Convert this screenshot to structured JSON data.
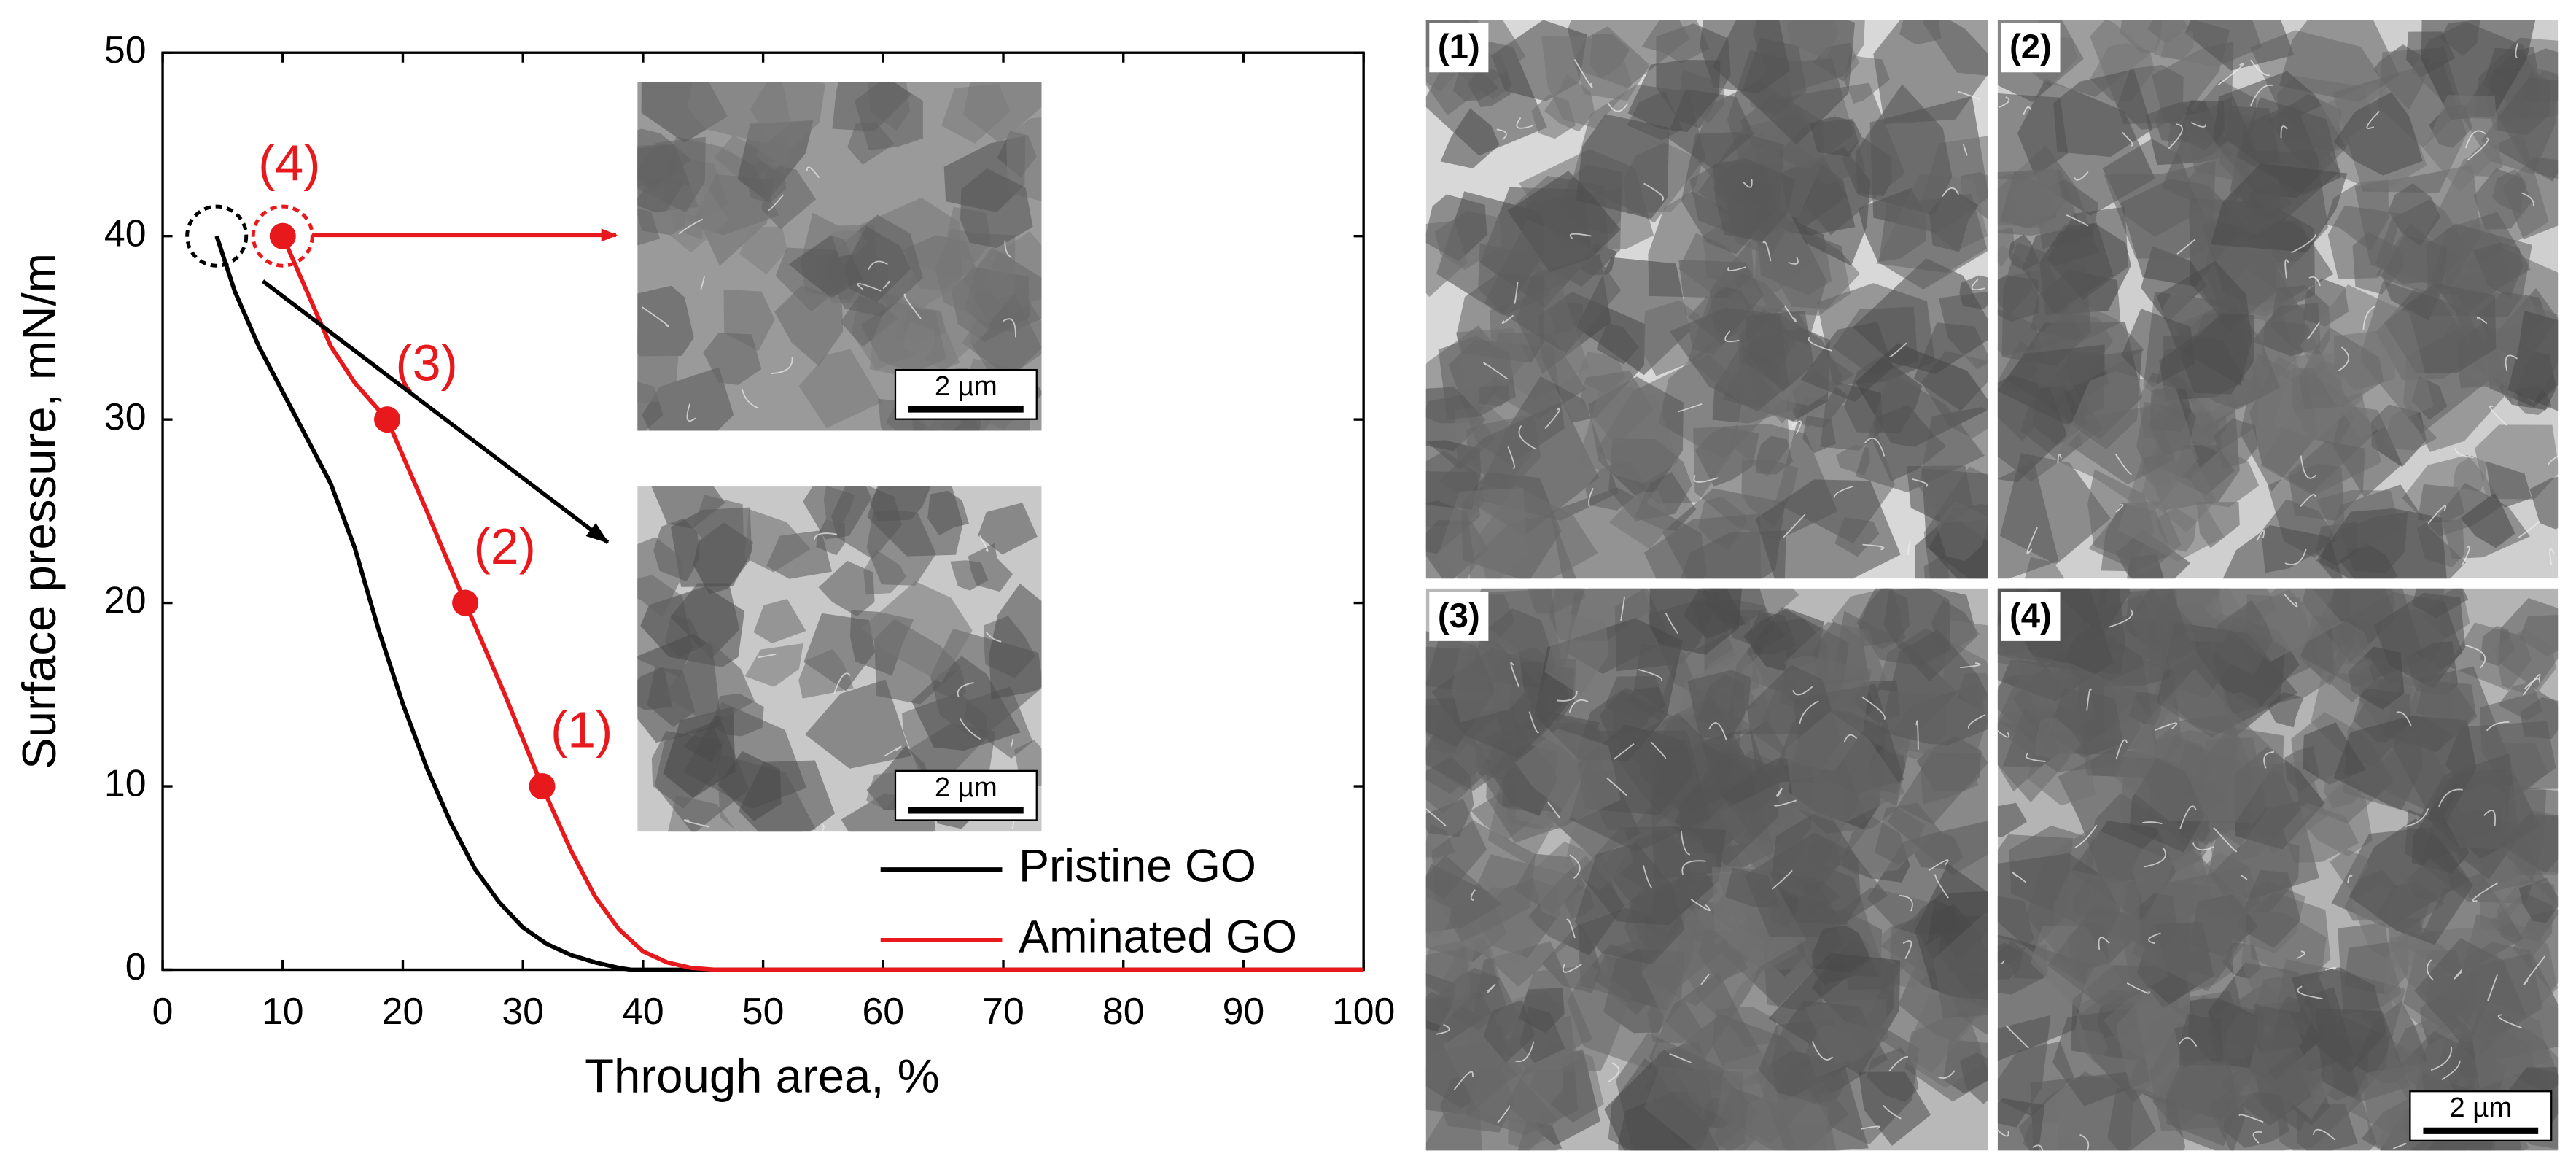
{
  "chart_data": {
    "type": "line",
    "x_label": "Through area, %",
    "y_label": "Surface pressure, mN/m",
    "xlim": [
      0,
      100
    ],
    "xticks": [
      0,
      10,
      20,
      30,
      40,
      50,
      60,
      70,
      80,
      90,
      100
    ],
    "ylim": [
      0,
      50
    ],
    "yticks": [
      0,
      10,
      20,
      30,
      40,
      50
    ],
    "legend": "lower right",
    "series": [
      {
        "name": "Pristine GO",
        "color": "#000000",
        "x": [
          4.5,
          6,
          8,
          10,
          12,
          14,
          16,
          18,
          20,
          22,
          24,
          26,
          28,
          30,
          32,
          34,
          36,
          38,
          39,
          100
        ],
        "values": [
          40,
          37,
          34,
          31.5,
          29,
          26.5,
          23,
          18.5,
          14.5,
          11,
          8,
          5.5,
          3.7,
          2.3,
          1.4,
          0.8,
          0.4,
          0.1,
          0,
          0
        ]
      },
      {
        "name": "Aminated GO",
        "color": "#e8191c",
        "x": [
          10,
          12,
          14,
          16,
          18.7,
          22,
          25.2,
          28.5,
          31.6,
          34,
          36,
          38,
          40,
          42,
          44,
          46,
          100
        ],
        "values": [
          40,
          37,
          34,
          32,
          30,
          25,
          20,
          15,
          10,
          6.5,
          4,
          2.2,
          1,
          0.4,
          0.1,
          0,
          0
        ]
      }
    ],
    "annotations": [
      {
        "text": "(1)",
        "x": 31.6,
        "y": 10
      },
      {
        "text": "(2)",
        "x": 25.2,
        "y": 20
      },
      {
        "text": "(3)",
        "x": 18.7,
        "y": 30
      },
      {
        "text": "(4)",
        "x": 10,
        "y": 40
      }
    ]
  },
  "insets": [
    {
      "scale_bar": "2 µm"
    },
    {
      "scale_bar": "2 µm"
    }
  ],
  "panels": [
    {
      "label": "(1)"
    },
    {
      "label": "(2)"
    },
    {
      "label": "(3)"
    },
    {
      "label": "(4)",
      "scale_bar": "2 µm"
    }
  ]
}
